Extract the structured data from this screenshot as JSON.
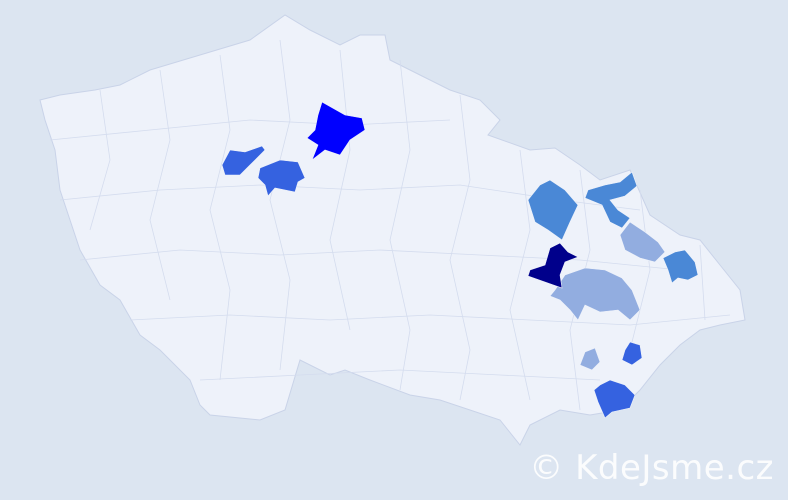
{
  "map": {
    "background_color": "#dce5f1",
    "land_color": "#eef2fa",
    "border_color": "#c9d3e8",
    "highlighted_regions": [
      {
        "name": "region-north-bohemia",
        "color": "#0000ff"
      },
      {
        "name": "region-central-west-a",
        "color": "#3562e0"
      },
      {
        "name": "region-central-west-b",
        "color": "#3562e0"
      },
      {
        "name": "region-east-bohemia-a",
        "color": "#4a88d6"
      },
      {
        "name": "region-north-moravia-a",
        "color": "#4a88d6"
      },
      {
        "name": "region-north-moravia-b",
        "color": "#4a88d6"
      },
      {
        "name": "region-moravia-light-a",
        "color": "#92ade0"
      },
      {
        "name": "region-moravia-light-b",
        "color": "#92ade0"
      },
      {
        "name": "region-moravia-light-c",
        "color": "#92ade0"
      },
      {
        "name": "region-moravia-dark",
        "color": "#00008b"
      },
      {
        "name": "region-south-moravia-a",
        "color": "#3562e0"
      },
      {
        "name": "region-south-moravia-b",
        "color": "#3562e0"
      }
    ]
  },
  "watermark": "© KdeJsme.cz"
}
